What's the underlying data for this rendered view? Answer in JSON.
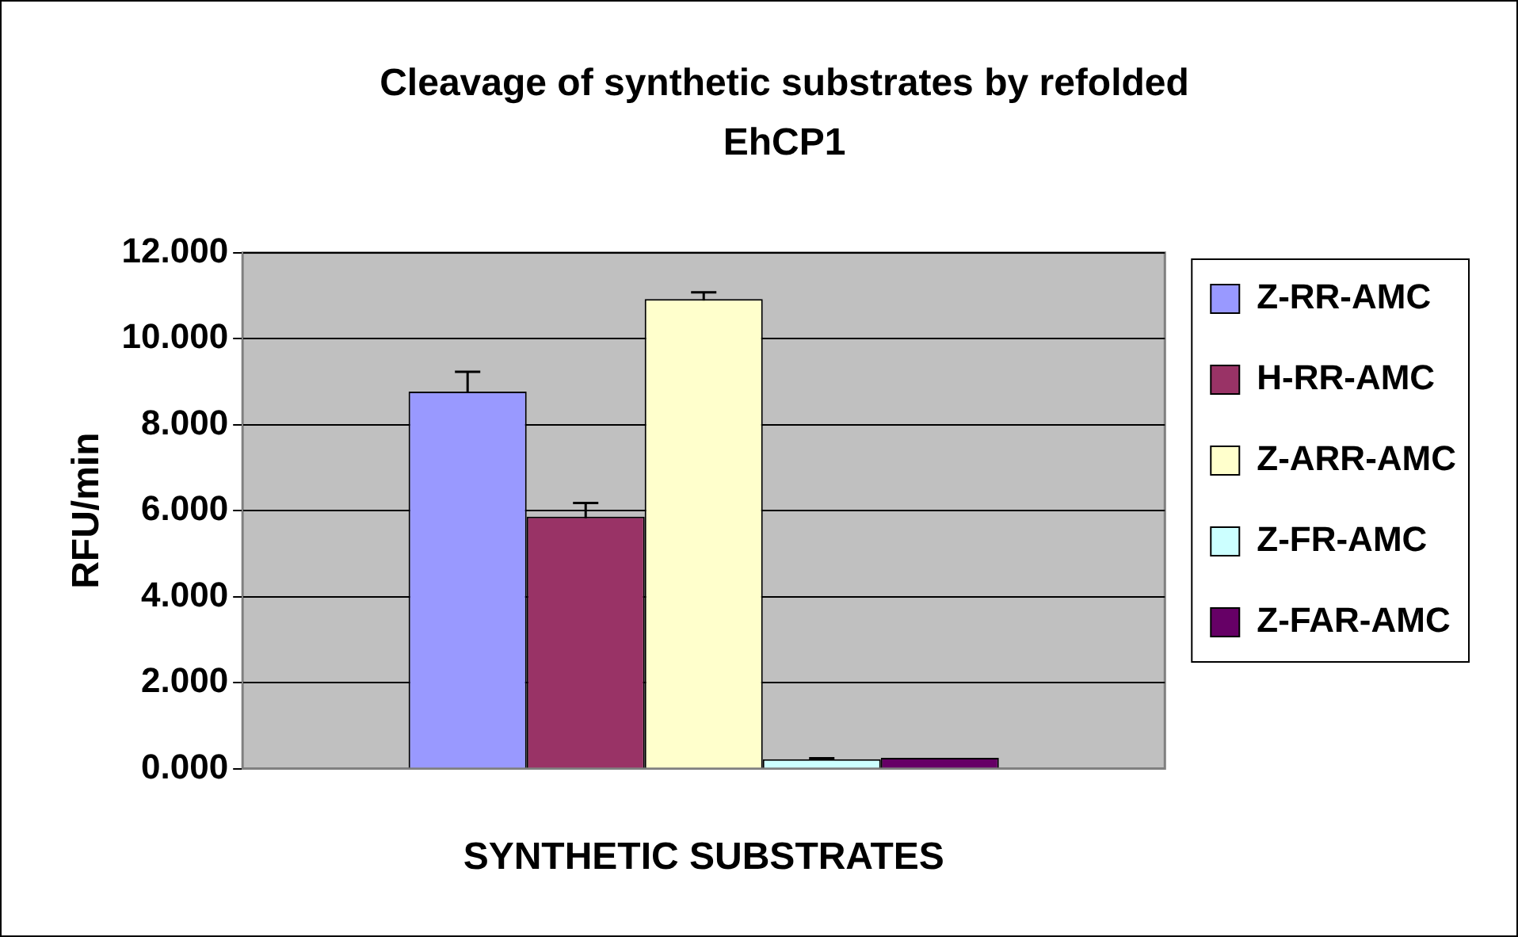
{
  "chart_data": {
    "type": "bar",
    "title": "Cleavage of synthetic substrates by refolded EhCP1",
    "xlabel": "SYNTHETIC SUBSTRATES",
    "ylabel": "RFU/min",
    "categories": [
      null
    ],
    "series": [
      {
        "name": "Z-RR-AMC",
        "color": "#9999ff",
        "values": [
          8.77
        ],
        "errors": [
          0.46
        ]
      },
      {
        "name": "H-RR-AMC",
        "color": "#993366",
        "values": [
          5.86
        ],
        "errors": [
          0.32
        ]
      },
      {
        "name": "Z-ARR-AMC",
        "color": "#ffffcc",
        "values": [
          10.92
        ],
        "errors": [
          0.16
        ]
      },
      {
        "name": "Z-FR-AMC",
        "color": "#ccffff",
        "values": [
          0.22
        ],
        "errors": [
          0.02
        ]
      },
      {
        "name": "Z-FAR-AMC",
        "color": "#660066",
        "values": [
          0.25
        ]
      }
    ],
    "ylim": [
      0,
      12
    ],
    "yticks": [
      {
        "value": 0,
        "label": "0.000"
      },
      {
        "value": 2,
        "label": "2.000"
      },
      {
        "value": 4,
        "label": "4.000"
      },
      {
        "value": 6,
        "label": "6.000"
      },
      {
        "value": 8,
        "label": "8.000"
      },
      {
        "value": 10,
        "label": "10.000"
      },
      {
        "value": 12,
        "label": "12.000"
      }
    ],
    "grid": "y",
    "legend": "right"
  }
}
